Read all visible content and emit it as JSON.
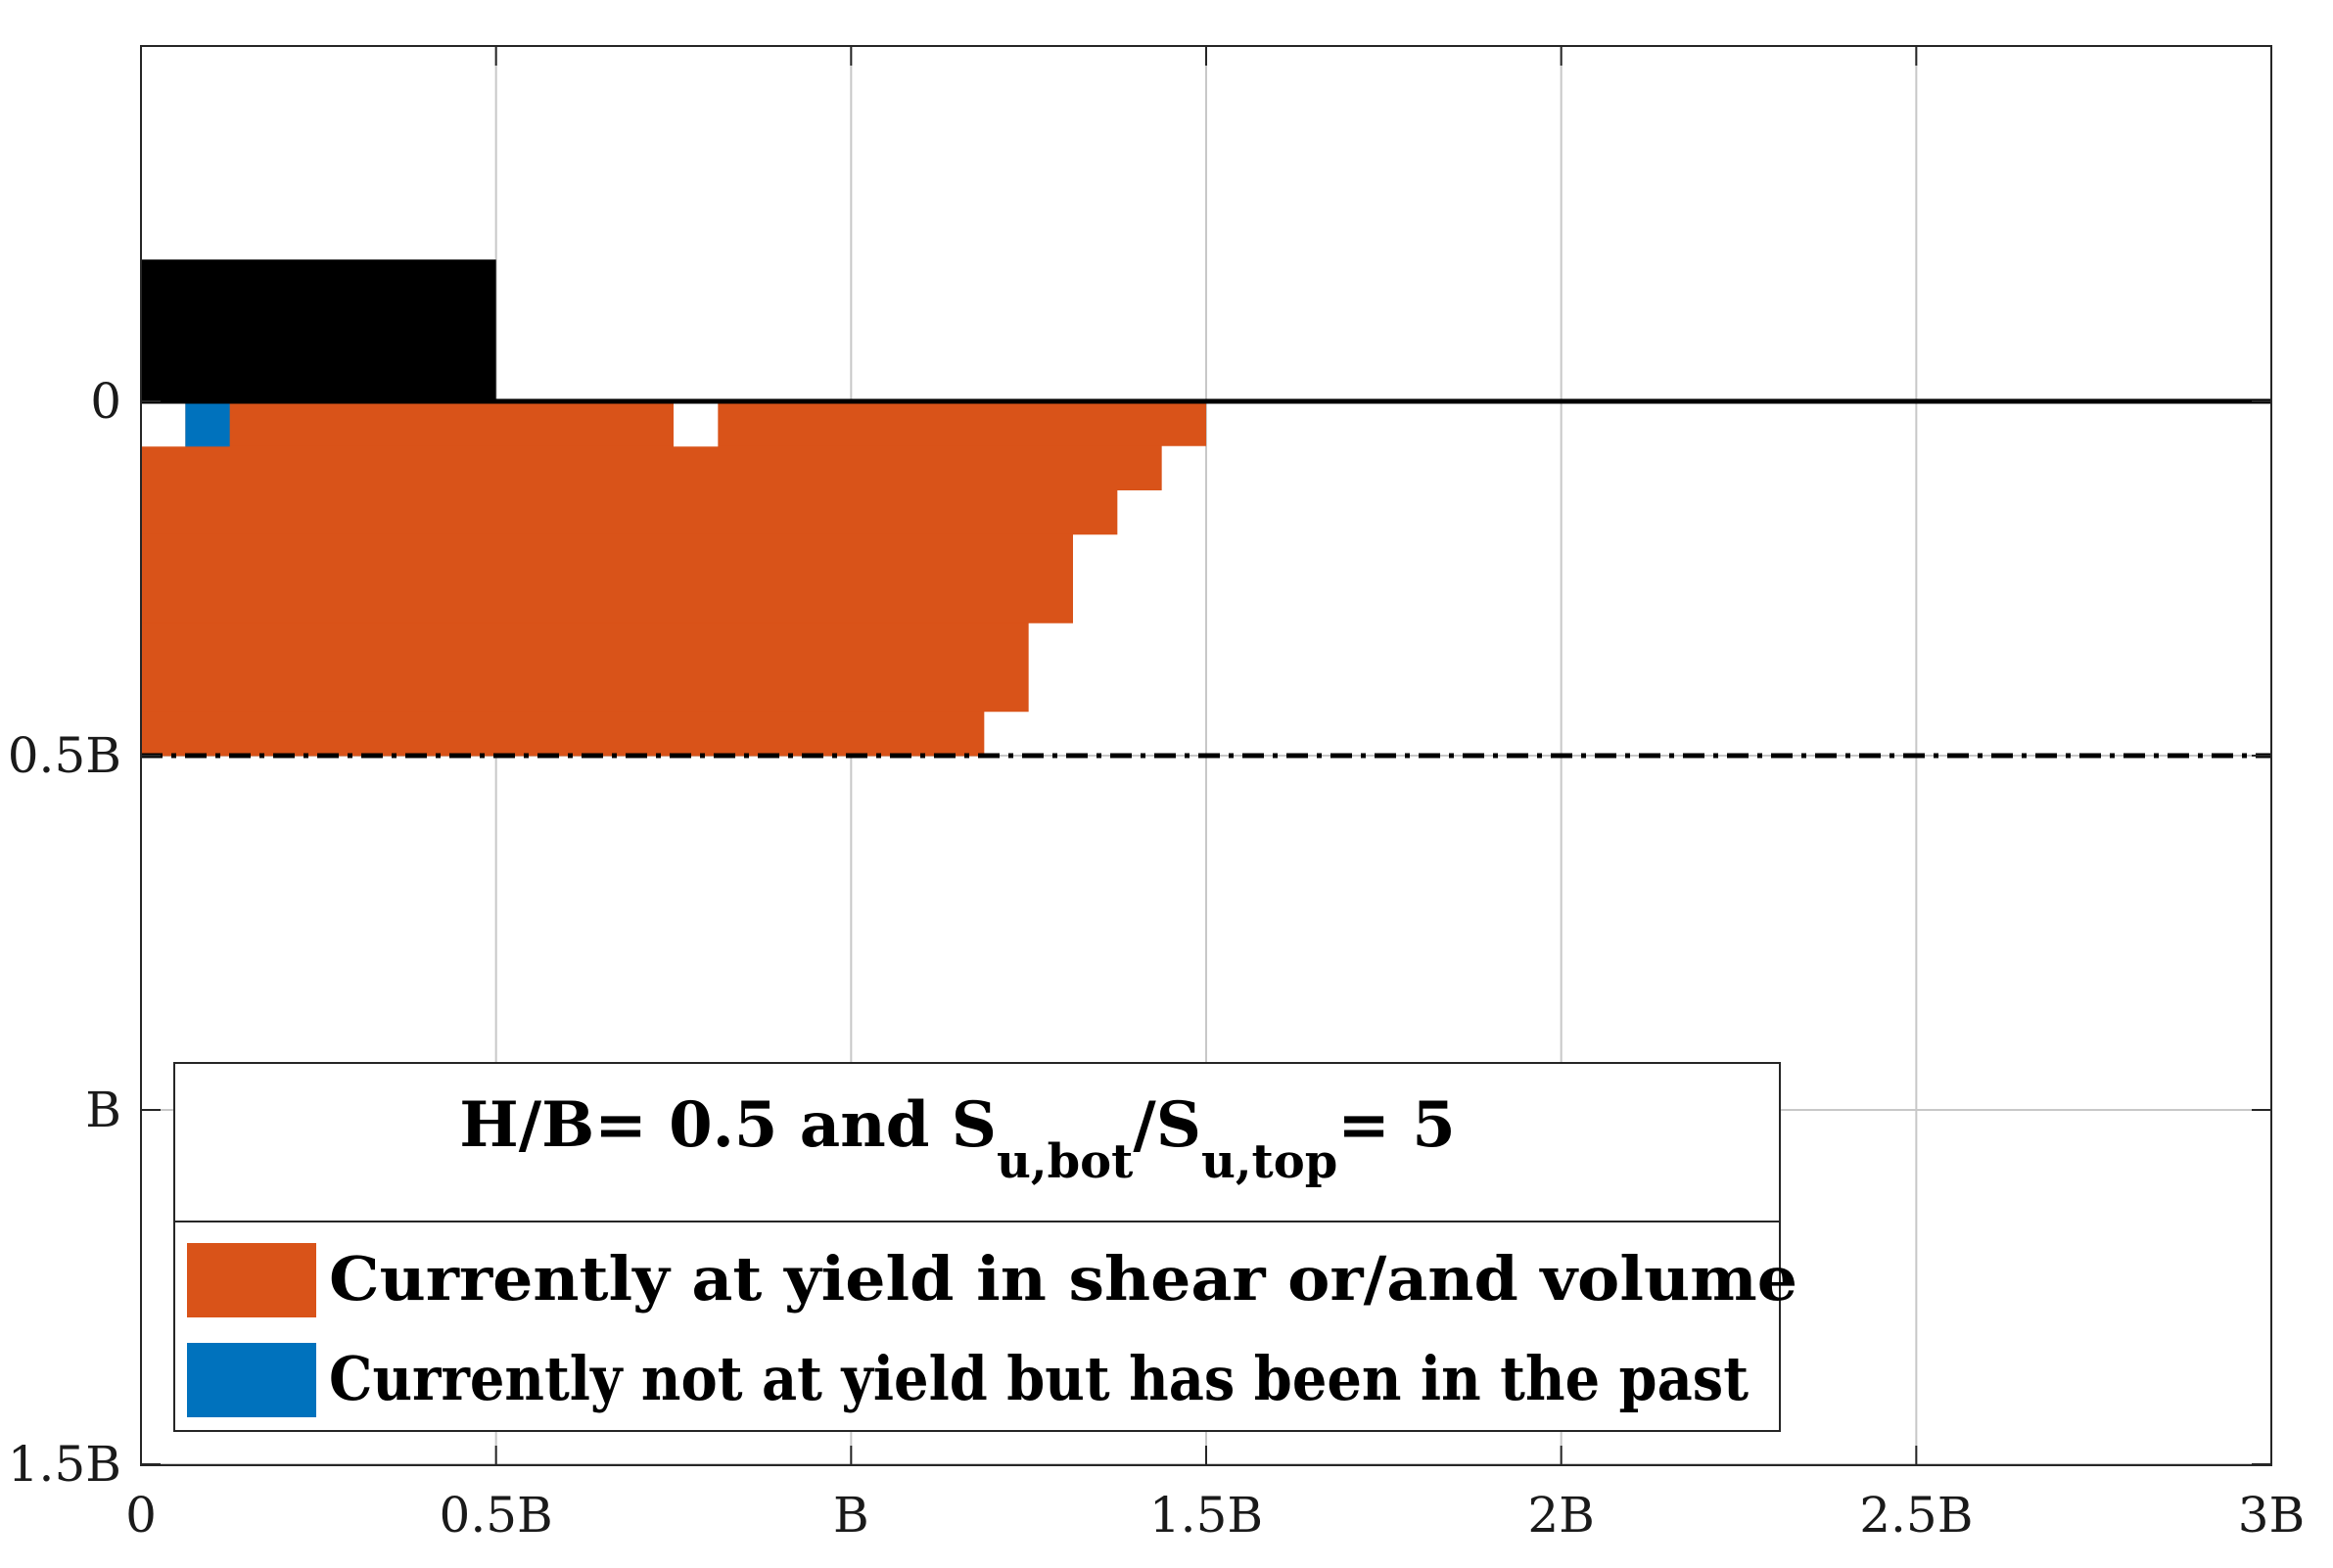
{
  "chart_data": {
    "type": "heatmap",
    "xlim": [
      0,
      3
    ],
    "ylim": [
      0,
      1.5
    ],
    "y_inverted": true,
    "grid": true,
    "x_ticks": [
      {
        "value": 0,
        "label": "0"
      },
      {
        "value": 0.5,
        "label": "0.5B"
      },
      {
        "value": 1,
        "label": "B"
      },
      {
        "value": 1.5,
        "label": "1.5B"
      },
      {
        "value": 2,
        "label": "2B"
      },
      {
        "value": 2.5,
        "label": "2.5B"
      },
      {
        "value": 3,
        "label": "3B"
      }
    ],
    "y_ticks": [
      {
        "value": 0,
        "label": "0"
      },
      {
        "value": 0.5,
        "label": "0.5B"
      },
      {
        "value": 1,
        "label": "B"
      },
      {
        "value": 1.5,
        "label": "1.5B"
      }
    ],
    "footing": {
      "x0": 0,
      "x1": 0.5,
      "top": -0.2,
      "bottom": 0,
      "color": "#000000"
    },
    "ground_line": {
      "y": 0,
      "x0": 0,
      "x1": 3,
      "style": "solid"
    },
    "layer_boundary": {
      "y": 0.5,
      "x0": 0,
      "x1": 3,
      "style": "dashdot"
    },
    "cell_size": 0.0625,
    "yield_rows": [
      {
        "y0": 0,
        "y1": 0.0625,
        "x_extent": 1.5
      },
      {
        "y0": 0.0625,
        "y1": 0.125,
        "x_extent": 1.4375
      },
      {
        "y0": 0.125,
        "y1": 0.1875,
        "x_extent": 1.375
      },
      {
        "y0": 0.1875,
        "y1": 0.3125,
        "x_extent": 1.3125
      },
      {
        "y0": 0.3125,
        "y1": 0.4375,
        "x_extent": 1.25
      },
      {
        "y0": 0.4375,
        "y1": 0.5,
        "x_extent": 1.1875
      }
    ],
    "white_cells": [
      {
        "x0": 0,
        "x1": 0.0625,
        "y0": 0,
        "y1": 0.0625
      },
      {
        "x0": 0.75,
        "x1": 0.8125,
        "y0": 0,
        "y1": 0.0625
      }
    ],
    "past_yield_cells": [
      {
        "x0": 0.0625,
        "x1": 0.125,
        "y0": 0,
        "y1": 0.0625
      }
    ],
    "colors": {
      "yield": "#D95319",
      "past_yield": "#0072BD",
      "grid": "#c8c8c8",
      "axes": "#262626"
    },
    "legend": {
      "placement": "bottom-left",
      "title_main": "H/B= 0.5 and S",
      "title_sub1": "u,bot",
      "title_mid": "/S",
      "title_sub2": "u,top",
      "title_end": "= 5",
      "entries": [
        {
          "label": "Currently at yield in shear or/and volume",
          "color": "#D95319"
        },
        {
          "label": "Currently not at yield but has been in the past",
          "color": "#0072BD"
        }
      ]
    }
  }
}
